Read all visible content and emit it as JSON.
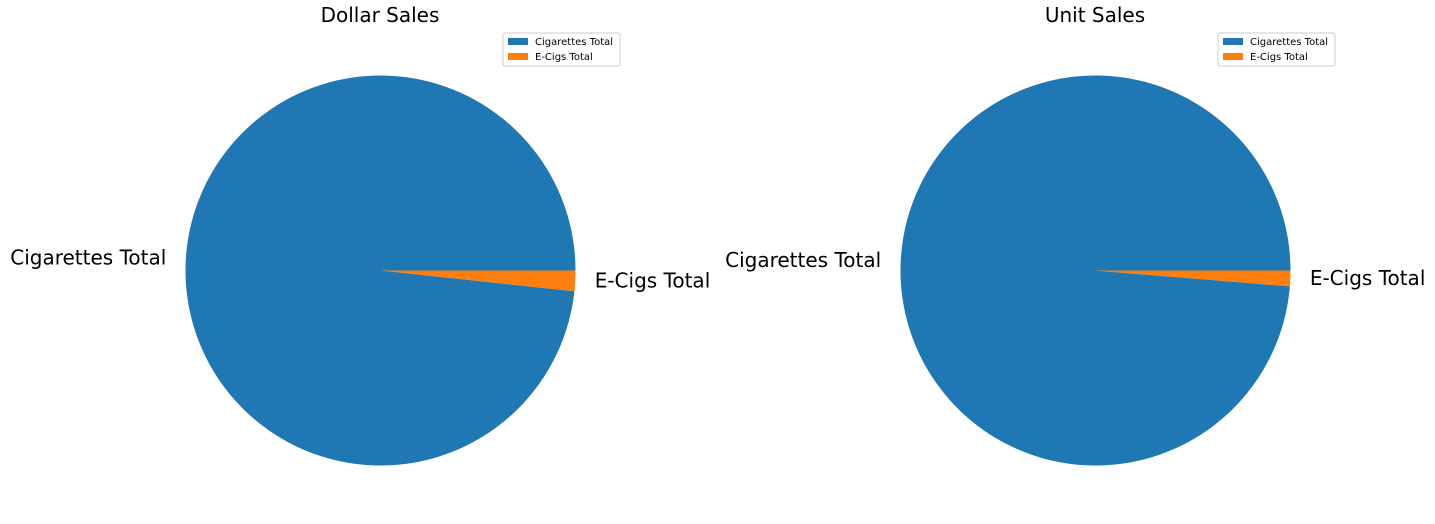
{
  "chart_data": [
    {
      "type": "pie",
      "title": "Dollar Sales",
      "slices": [
        {
          "label": "Cigarettes Total",
          "value": 98.3,
          "color": "#1f77b4"
        },
        {
          "label": "E-Cigs Total",
          "value": 1.7,
          "color": "#ff7f0e"
        }
      ],
      "legend": {
        "placement": "top-right",
        "entries": [
          "Cigarettes Total",
          "E-Cigs Total"
        ]
      }
    },
    {
      "type": "pie",
      "title": "Unit Sales",
      "slices": [
        {
          "label": "Cigarettes Total",
          "value": 98.7,
          "color": "#1f77b4"
        },
        {
          "label": "E-Cigs Total",
          "value": 1.3,
          "color": "#ff7f0e"
        }
      ],
      "legend": {
        "placement": "top-right",
        "entries": [
          "Cigarettes Total",
          "E-Cigs Total"
        ]
      }
    }
  ]
}
